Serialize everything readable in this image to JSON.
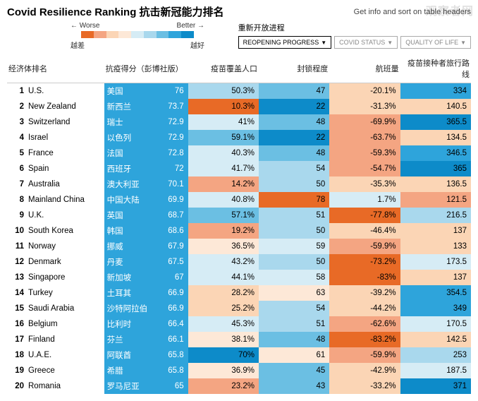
{
  "watermark": "观察者网",
  "title": "Covid Resilience Ranking  抗击新冠能力排名",
  "info_text": "Get info and sort on table headers",
  "legend": {
    "worse_en": "← Worse",
    "better_en": "Better →",
    "worse_cn": "越差",
    "better_cn": "越好",
    "colors": [
      "#e86a26",
      "#f4a582",
      "#fbd5b5",
      "#fde8d7",
      "#d6ecf5",
      "#a9d8ed",
      "#6bbfe3",
      "#2ea4db",
      "#0d8bc9"
    ]
  },
  "filter_label": "重新开放进程",
  "filters": [
    {
      "label": "REOPENING PROGRESS",
      "active": true
    },
    {
      "label": "COVID STATUS",
      "active": false
    },
    {
      "label": "QUALITY OF LIFE",
      "active": false
    }
  ],
  "headers": {
    "rank": "经济体排名",
    "score": "抗疫得分（彭博社版）",
    "vax": "疫苗覆盖人口",
    "lock": "封锁程度",
    "flight": "航班量",
    "routes": "疫苗接种者旅行路线"
  },
  "col_colors": {
    "cn_bg": "#2ea4db",
    "score_bg": "#2ea4db"
  },
  "rows": [
    {
      "r": 1,
      "en": "U.S.",
      "cn": "美国",
      "score": "76",
      "vax": "50.3%",
      "vax_c": "#a9d8ed",
      "lock": "47",
      "lock_c": "#6bbfe3",
      "flight": "-20.1%",
      "flight_c": "#fbd5b5",
      "routes": "334",
      "routes_c": "#2ea4db"
    },
    {
      "r": 2,
      "en": "New Zealand",
      "cn": "新西兰",
      "score": "73.7",
      "vax": "10.3%",
      "vax_c": "#e86a26",
      "lock": "22",
      "lock_c": "#0d8bc9",
      "flight": "-31.3%",
      "flight_c": "#fbd5b5",
      "routes": "140.5",
      "routes_c": "#fbd5b5"
    },
    {
      "r": 3,
      "en": "Switzerland",
      "cn": "瑞士",
      "score": "72.9",
      "vax": "41%",
      "vax_c": "#d6ecf5",
      "lock": "48",
      "lock_c": "#6bbfe3",
      "flight": "-69.9%",
      "flight_c": "#f4a582",
      "routes": "365.5",
      "routes_c": "#0d8bc9"
    },
    {
      "r": 4,
      "en": "Israel",
      "cn": "以色列",
      "score": "72.9",
      "vax": "59.1%",
      "vax_c": "#6bbfe3",
      "lock": "22",
      "lock_c": "#0d8bc9",
      "flight": "-63.7%",
      "flight_c": "#f4a582",
      "routes": "134.5",
      "routes_c": "#fbd5b5"
    },
    {
      "r": 5,
      "en": "France",
      "cn": "法国",
      "score": "72.8",
      "vax": "40.3%",
      "vax_c": "#d6ecf5",
      "lock": "48",
      "lock_c": "#6bbfe3",
      "flight": "-59.3%",
      "flight_c": "#f4a582",
      "routes": "346.5",
      "routes_c": "#2ea4db"
    },
    {
      "r": 6,
      "en": "Spain",
      "cn": "西班牙",
      "score": "72",
      "vax": "41.7%",
      "vax_c": "#d6ecf5",
      "lock": "54",
      "lock_c": "#a9d8ed",
      "flight": "-54.7%",
      "flight_c": "#f4a582",
      "routes": "365",
      "routes_c": "#0d8bc9"
    },
    {
      "r": 7,
      "en": "Australia",
      "cn": "澳大利亚",
      "score": "70.1",
      "vax": "14.2%",
      "vax_c": "#f4a582",
      "lock": "50",
      "lock_c": "#a9d8ed",
      "flight": "-35.3%",
      "flight_c": "#fbd5b5",
      "routes": "136.5",
      "routes_c": "#fbd5b5"
    },
    {
      "r": 8,
      "en": "Mainland China",
      "cn": "中国大陆",
      "score": "69.9",
      "vax": "40.8%",
      "vax_c": "#d6ecf5",
      "lock": "78",
      "lock_c": "#e86a26",
      "flight": "1.7%",
      "flight_c": "#d6ecf5",
      "routes": "121.5",
      "routes_c": "#f4a582"
    },
    {
      "r": 9,
      "en": "U.K.",
      "cn": "英国",
      "score": "68.7",
      "vax": "57.1%",
      "vax_c": "#6bbfe3",
      "lock": "51",
      "lock_c": "#a9d8ed",
      "flight": "-77.8%",
      "flight_c": "#e86a26",
      "routes": "216.5",
      "routes_c": "#a9d8ed"
    },
    {
      "r": 10,
      "en": "South Korea",
      "cn": "韩国",
      "score": "68.6",
      "vax": "19.2%",
      "vax_c": "#f4a582",
      "lock": "50",
      "lock_c": "#a9d8ed",
      "flight": "-46.4%",
      "flight_c": "#fbd5b5",
      "routes": "137",
      "routes_c": "#fbd5b5"
    },
    {
      "r": 11,
      "en": "Norway",
      "cn": "挪威",
      "score": "67.9",
      "vax": "36.5%",
      "vax_c": "#fde8d7",
      "lock": "59",
      "lock_c": "#d6ecf5",
      "flight": "-59.9%",
      "flight_c": "#f4a582",
      "routes": "133",
      "routes_c": "#fbd5b5"
    },
    {
      "r": 12,
      "en": "Denmark",
      "cn": "丹麦",
      "score": "67.5",
      "vax": "43.2%",
      "vax_c": "#d6ecf5",
      "lock": "50",
      "lock_c": "#a9d8ed",
      "flight": "-73.2%",
      "flight_c": "#e86a26",
      "routes": "173.5",
      "routes_c": "#d6ecf5"
    },
    {
      "r": 13,
      "en": "Singapore",
      "cn": "新加坡",
      "score": "67",
      "vax": "44.1%",
      "vax_c": "#d6ecf5",
      "lock": "58",
      "lock_c": "#d6ecf5",
      "flight": "-83%",
      "flight_c": "#e86a26",
      "routes": "137",
      "routes_c": "#fbd5b5"
    },
    {
      "r": 14,
      "en": "Turkey",
      "cn": "土耳其",
      "score": "66.9",
      "vax": "28.2%",
      "vax_c": "#fbd5b5",
      "lock": "63",
      "lock_c": "#fde8d7",
      "flight": "-39.2%",
      "flight_c": "#fbd5b5",
      "routes": "354.5",
      "routes_c": "#2ea4db"
    },
    {
      "r": 15,
      "en": "Saudi Arabia",
      "cn": "沙特阿拉伯",
      "score": "66.9",
      "vax": "25.2%",
      "vax_c": "#fbd5b5",
      "lock": "54",
      "lock_c": "#a9d8ed",
      "flight": "-44.2%",
      "flight_c": "#fbd5b5",
      "routes": "349",
      "routes_c": "#2ea4db"
    },
    {
      "r": 16,
      "en": "Belgium",
      "cn": "比利时",
      "score": "66.4",
      "vax": "45.3%",
      "vax_c": "#d6ecf5",
      "lock": "51",
      "lock_c": "#a9d8ed",
      "flight": "-62.6%",
      "flight_c": "#f4a582",
      "routes": "170.5",
      "routes_c": "#d6ecf5"
    },
    {
      "r": 17,
      "en": "Finland",
      "cn": "芬兰",
      "score": "66.1",
      "vax": "38.1%",
      "vax_c": "#fde8d7",
      "lock": "48",
      "lock_c": "#6bbfe3",
      "flight": "-83.2%",
      "flight_c": "#e86a26",
      "routes": "142.5",
      "routes_c": "#fbd5b5"
    },
    {
      "r": 18,
      "en": "U.A.E.",
      "cn": "阿联酋",
      "score": "65.8",
      "vax": "70%",
      "vax_c": "#0d8bc9",
      "lock": "61",
      "lock_c": "#fde8d7",
      "flight": "-59.9%",
      "flight_c": "#f4a582",
      "routes": "253",
      "routes_c": "#a9d8ed"
    },
    {
      "r": 19,
      "en": "Greece",
      "cn": "希腊",
      "score": "65.8",
      "vax": "36.9%",
      "vax_c": "#fde8d7",
      "lock": "45",
      "lock_c": "#6bbfe3",
      "flight": "-42.9%",
      "flight_c": "#fbd5b5",
      "routes": "187.5",
      "routes_c": "#d6ecf5"
    },
    {
      "r": 20,
      "en": "Romania",
      "cn": "罗马尼亚",
      "score": "65",
      "vax": "23.2%",
      "vax_c": "#f4a582",
      "lock": "43",
      "lock_c": "#6bbfe3",
      "flight": "-33.2%",
      "flight_c": "#fbd5b5",
      "routes": "371",
      "routes_c": "#0d8bc9"
    }
  ]
}
